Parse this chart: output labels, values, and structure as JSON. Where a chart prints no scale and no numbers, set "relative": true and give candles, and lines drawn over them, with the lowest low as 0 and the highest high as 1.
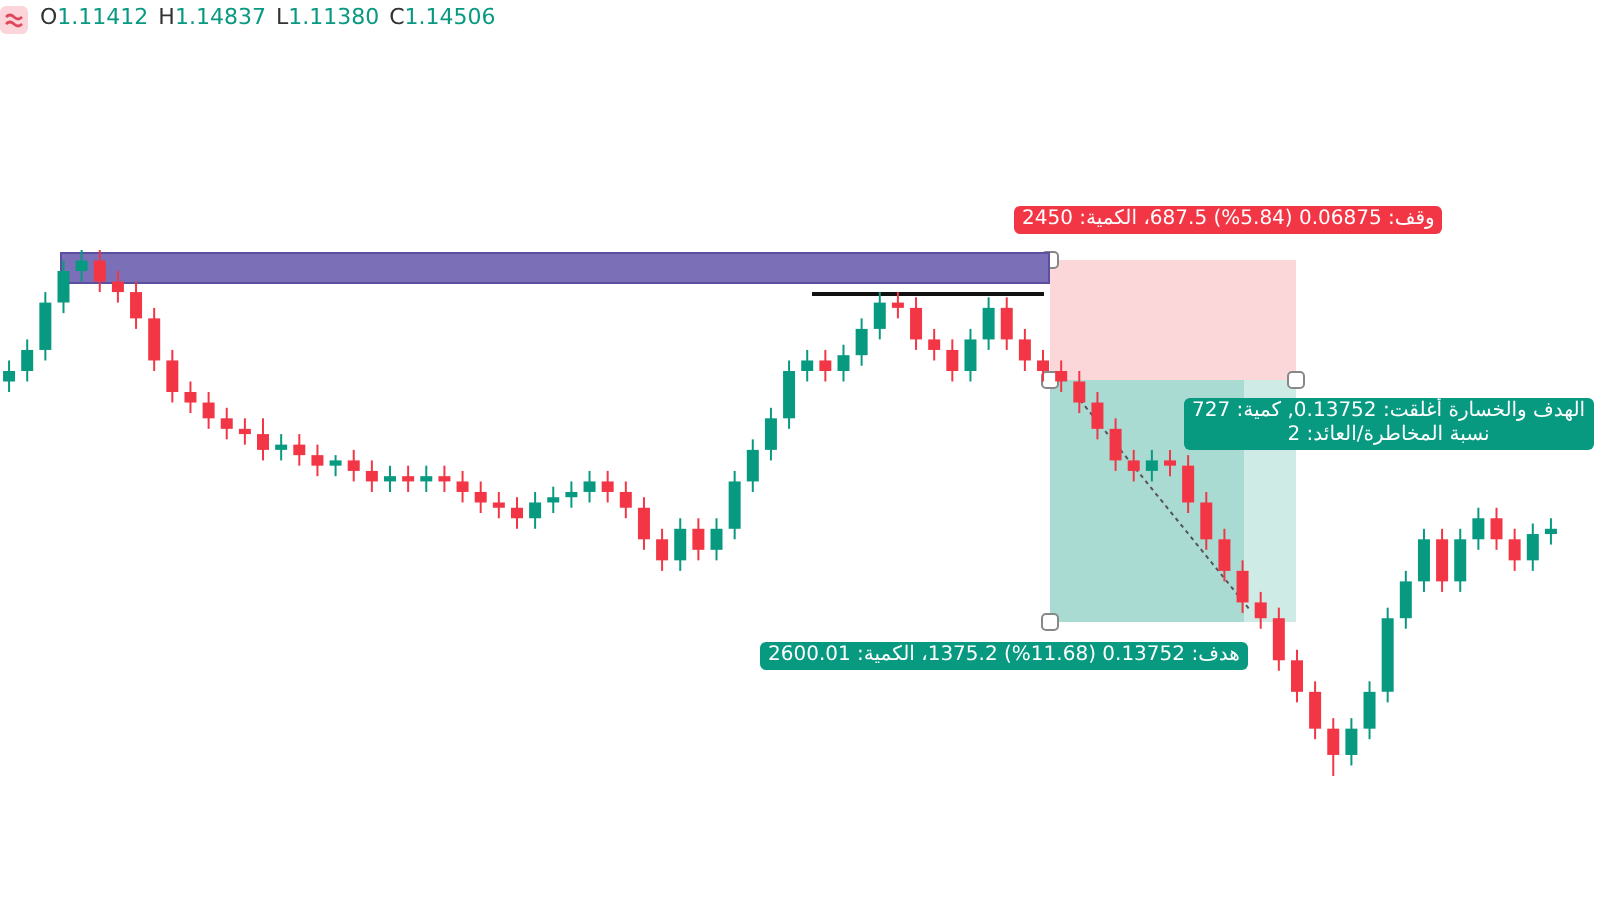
{
  "chart_data": {
    "type": "candlestick",
    "relative": true,
    "grid": false,
    "categories": [
      null,
      null,
      null,
      null,
      null,
      null,
      null,
      null,
      null,
      null,
      null,
      null,
      null,
      null,
      null,
      null,
      null,
      null,
      null,
      null,
      null,
      null,
      null,
      null,
      null,
      null,
      null,
      null,
      null,
      null,
      null,
      null,
      null,
      null,
      null,
      null,
      null,
      null,
      null,
      null,
      null,
      null,
      null,
      null,
      null,
      null,
      null,
      null,
      null,
      null,
      null,
      null,
      null,
      null,
      null,
      null,
      null,
      null,
      null,
      null,
      null,
      null,
      null,
      null,
      null,
      null,
      null,
      null,
      null,
      null,
      null,
      null,
      null,
      null,
      null,
      null,
      null,
      null,
      null,
      null,
      null,
      null,
      null,
      null,
      null,
      null
    ],
    "ohlc": [
      [
        0.75,
        0.79,
        0.73,
        0.77
      ],
      [
        0.77,
        0.83,
        0.75,
        0.81
      ],
      [
        0.81,
        0.92,
        0.79,
        0.9
      ],
      [
        0.9,
        0.98,
        0.88,
        0.96
      ],
      [
        0.96,
        1.0,
        0.94,
        0.98
      ],
      [
        0.98,
        1.0,
        0.92,
        0.94
      ],
      [
        0.94,
        0.96,
        0.9,
        0.92
      ],
      [
        0.92,
        0.94,
        0.85,
        0.87
      ],
      [
        0.87,
        0.89,
        0.77,
        0.79
      ],
      [
        0.79,
        0.81,
        0.71,
        0.73
      ],
      [
        0.73,
        0.75,
        0.69,
        0.71
      ],
      [
        0.71,
        0.73,
        0.66,
        0.68
      ],
      [
        0.68,
        0.7,
        0.64,
        0.66
      ],
      [
        0.66,
        0.68,
        0.63,
        0.65
      ],
      [
        0.65,
        0.68,
        0.6,
        0.62
      ],
      [
        0.62,
        0.65,
        0.6,
        0.63
      ],
      [
        0.63,
        0.65,
        0.59,
        0.61
      ],
      [
        0.61,
        0.63,
        0.57,
        0.59
      ],
      [
        0.59,
        0.61,
        0.57,
        0.6
      ],
      [
        0.6,
        0.62,
        0.56,
        0.58
      ],
      [
        0.58,
        0.6,
        0.54,
        0.56
      ],
      [
        0.56,
        0.59,
        0.54,
        0.57
      ],
      [
        0.57,
        0.59,
        0.54,
        0.56
      ],
      [
        0.56,
        0.59,
        0.54,
        0.57
      ],
      [
        0.57,
        0.59,
        0.54,
        0.56
      ],
      [
        0.56,
        0.58,
        0.52,
        0.54
      ],
      [
        0.54,
        0.56,
        0.5,
        0.52
      ],
      [
        0.52,
        0.54,
        0.49,
        0.51
      ],
      [
        0.51,
        0.53,
        0.47,
        0.49
      ],
      [
        0.49,
        0.54,
        0.47,
        0.52
      ],
      [
        0.52,
        0.55,
        0.5,
        0.53
      ],
      [
        0.53,
        0.56,
        0.51,
        0.54
      ],
      [
        0.54,
        0.58,
        0.52,
        0.56
      ],
      [
        0.56,
        0.58,
        0.52,
        0.54
      ],
      [
        0.54,
        0.56,
        0.49,
        0.51
      ],
      [
        0.51,
        0.53,
        0.43,
        0.45
      ],
      [
        0.45,
        0.47,
        0.39,
        0.41
      ],
      [
        0.41,
        0.49,
        0.39,
        0.47
      ],
      [
        0.47,
        0.49,
        0.41,
        0.43
      ],
      [
        0.43,
        0.49,
        0.41,
        0.47
      ],
      [
        0.47,
        0.58,
        0.45,
        0.56
      ],
      [
        0.56,
        0.64,
        0.54,
        0.62
      ],
      [
        0.62,
        0.7,
        0.6,
        0.68
      ],
      [
        0.68,
        0.79,
        0.66,
        0.77
      ],
      [
        0.77,
        0.81,
        0.75,
        0.79
      ],
      [
        0.79,
        0.81,
        0.75,
        0.77
      ],
      [
        0.77,
        0.82,
        0.75,
        0.8
      ],
      [
        0.8,
        0.87,
        0.78,
        0.85
      ],
      [
        0.85,
        0.92,
        0.83,
        0.9
      ],
      [
        0.9,
        0.92,
        0.87,
        0.89
      ],
      [
        0.89,
        0.91,
        0.81,
        0.83
      ],
      [
        0.83,
        0.85,
        0.79,
        0.81
      ],
      [
        0.81,
        0.83,
        0.75,
        0.77
      ],
      [
        0.77,
        0.85,
        0.75,
        0.83
      ],
      [
        0.83,
        0.91,
        0.81,
        0.89
      ],
      [
        0.89,
        0.91,
        0.81,
        0.83
      ],
      [
        0.83,
        0.85,
        0.77,
        0.79
      ],
      [
        0.79,
        0.81,
        0.75,
        0.77
      ],
      [
        0.77,
        0.79,
        0.73,
        0.75
      ],
      [
        0.75,
        0.77,
        0.69,
        0.71
      ],
      [
        0.71,
        0.73,
        0.64,
        0.66
      ],
      [
        0.66,
        0.68,
        0.58,
        0.6
      ],
      [
        0.6,
        0.62,
        0.56,
        0.58
      ],
      [
        0.58,
        0.62,
        0.56,
        0.6
      ],
      [
        0.6,
        0.62,
        0.57,
        0.59
      ],
      [
        0.59,
        0.61,
        0.5,
        0.52
      ],
      [
        0.52,
        0.54,
        0.43,
        0.45
      ],
      [
        0.45,
        0.47,
        0.37,
        0.39
      ],
      [
        0.39,
        0.41,
        0.31,
        0.33
      ],
      [
        0.33,
        0.35,
        0.28,
        0.3
      ],
      [
        0.3,
        0.32,
        0.2,
        0.22
      ],
      [
        0.22,
        0.24,
        0.14,
        0.16
      ],
      [
        0.16,
        0.18,
        0.07,
        0.09
      ],
      [
        0.09,
        0.11,
        0.0,
        0.04
      ],
      [
        0.04,
        0.11,
        0.02,
        0.09
      ],
      [
        0.09,
        0.18,
        0.07,
        0.16
      ],
      [
        0.16,
        0.32,
        0.14,
        0.3
      ],
      [
        0.3,
        0.39,
        0.28,
        0.37
      ],
      [
        0.37,
        0.47,
        0.35,
        0.45
      ],
      [
        0.45,
        0.47,
        0.35,
        0.37
      ],
      [
        0.37,
        0.47,
        0.35,
        0.45
      ],
      [
        0.45,
        0.51,
        0.43,
        0.49
      ],
      [
        0.49,
        0.51,
        0.43,
        0.45
      ],
      [
        0.45,
        0.47,
        0.39,
        0.41
      ],
      [
        0.41,
        0.48,
        0.39,
        0.46
      ],
      [
        0.46,
        0.49,
        0.44,
        0.47
      ]
    ],
    "annotations": [
      "O1.11412 H1.14837 L1.11380 C1.14506",
      "وقف: 0.06875 (5.84%) 687.5، الكمية: 2450",
      "الهدف والخسارة أغلقت: 0.13752, كمية: 727\nنسبة المخاطرة/العائد: 2",
      "هدف: 0.13752 (11.68%) 1375.2، الكمية: 2600.01"
    ]
  }
}
